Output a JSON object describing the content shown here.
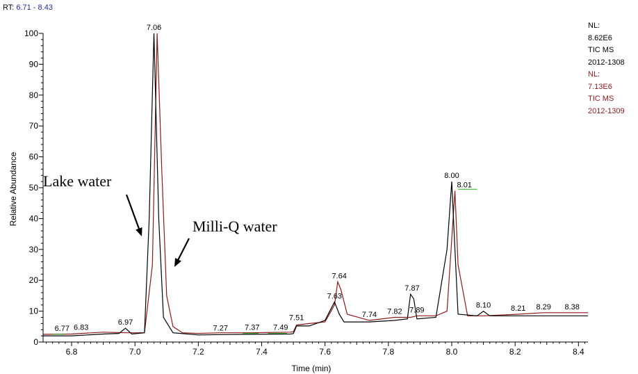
{
  "header": {
    "rt_prefix": "RT: ",
    "rt_range": "6.71 - 8.43"
  },
  "nl_info": {
    "trace1": [
      "NL:",
      "8.62E6",
      "TIC  MS",
      "2012-1308"
    ],
    "trace2": [
      "NL:",
      "7.13E6",
      "TIC  MS",
      "2012-1309"
    ]
  },
  "annotations": {
    "lake": "Lake water",
    "milliq": "Milli-Q water"
  },
  "colors": {
    "trace1": "#000000",
    "trace2": "#8b1a1a",
    "baseline_marks": "#22aa22",
    "rt_range": "#1f2f8f"
  },
  "chart_data": {
    "type": "line",
    "xlabel": "Time (min)",
    "ylabel": "Relative Abundance",
    "xlim": [
      6.71,
      8.43
    ],
    "ylim": [
      0,
      100
    ],
    "x_ticks": [
      6.8,
      7.0,
      7.2,
      7.4,
      7.6,
      7.8,
      8.0,
      8.2,
      8.4
    ],
    "y_ticks": [
      0,
      10,
      20,
      30,
      40,
      50,
      60,
      70,
      80,
      90,
      100
    ],
    "grid": false,
    "series": [
      {
        "name": "TIC MS 2012-1308",
        "color": "#000000",
        "points": [
          [
            6.71,
            2
          ],
          [
            6.8,
            2
          ],
          [
            6.9,
            2.6
          ],
          [
            6.95,
            2.8
          ],
          [
            6.97,
            4.5
          ],
          [
            6.99,
            2.6
          ],
          [
            7.03,
            3
          ],
          [
            7.045,
            40
          ],
          [
            7.06,
            100
          ],
          [
            7.075,
            40
          ],
          [
            7.09,
            8
          ],
          [
            7.12,
            3
          ],
          [
            7.2,
            2.3
          ],
          [
            7.27,
            2.4
          ],
          [
            7.37,
            2.5
          ],
          [
            7.49,
            2.6
          ],
          [
            7.5,
            2.7
          ],
          [
            7.51,
            5.2
          ],
          [
            7.55,
            5.2
          ],
          [
            7.6,
            7
          ],
          [
            7.63,
            13
          ],
          [
            7.645,
            9
          ],
          [
            7.66,
            6.5
          ],
          [
            7.74,
            6.5
          ],
          [
            7.82,
            7
          ],
          [
            7.86,
            7.5
          ],
          [
            7.87,
            15.5
          ],
          [
            7.88,
            14
          ],
          [
            7.89,
            7.5
          ],
          [
            7.95,
            8
          ],
          [
            7.985,
            30
          ],
          [
            8.0,
            52
          ],
          [
            8.01,
            30
          ],
          [
            8.02,
            9
          ],
          [
            8.08,
            8.5
          ],
          [
            8.1,
            10
          ],
          [
            8.12,
            8.5
          ],
          [
            8.21,
            8.5
          ],
          [
            8.29,
            8.5
          ],
          [
            8.43,
            8.5
          ]
        ]
      },
      {
        "name": "TIC MS 2012-1309",
        "color": "#8b1a1a",
        "points": [
          [
            6.71,
            2.5
          ],
          [
            6.8,
            2.6
          ],
          [
            6.9,
            3.2
          ],
          [
            6.97,
            3
          ],
          [
            7.03,
            3
          ],
          [
            7.055,
            25
          ],
          [
            7.07,
            100
          ],
          [
            7.085,
            55
          ],
          [
            7.1,
            15
          ],
          [
            7.12,
            5
          ],
          [
            7.15,
            3
          ],
          [
            7.2,
            2.8
          ],
          [
            7.27,
            3
          ],
          [
            7.37,
            3
          ],
          [
            7.49,
            3.2
          ],
          [
            7.5,
            3.3
          ],
          [
            7.51,
            5.5
          ],
          [
            7.55,
            6
          ],
          [
            7.6,
            6.5
          ],
          [
            7.63,
            12
          ],
          [
            7.64,
            19.5
          ],
          [
            7.65,
            17
          ],
          [
            7.67,
            9
          ],
          [
            7.74,
            7
          ],
          [
            7.82,
            8
          ],
          [
            7.87,
            8
          ],
          [
            7.89,
            8.5
          ],
          [
            7.95,
            8.5
          ],
          [
            7.985,
            10
          ],
          [
            8.01,
            49
          ],
          [
            8.02,
            25
          ],
          [
            8.05,
            8.5
          ],
          [
            8.1,
            8.5
          ],
          [
            8.21,
            9
          ],
          [
            8.29,
            9.5
          ],
          [
            8.43,
            9.5
          ]
        ]
      }
    ],
    "peak_labels": [
      {
        "label": "6.77",
        "x": 6.77,
        "y": 2.5
      },
      {
        "label": "6.83",
        "x": 6.83,
        "y": 2.8
      },
      {
        "label": "6.97",
        "x": 6.97,
        "y": 4.5
      },
      {
        "label": "7.06",
        "x": 7.06,
        "y": 100
      },
      {
        "label": "7.27",
        "x": 7.27,
        "y": 2.6
      },
      {
        "label": "7.37",
        "x": 7.37,
        "y": 2.8
      },
      {
        "label": "7.49",
        "x": 7.46,
        "y": 2.8
      },
      {
        "label": "7.51",
        "x": 7.51,
        "y": 6
      },
      {
        "label": "7.63",
        "x": 7.63,
        "y": 13
      },
      {
        "label": "7.64",
        "x": 7.645,
        "y": 19.5
      },
      {
        "label": "7.74",
        "x": 7.74,
        "y": 7
      },
      {
        "label": "7.82",
        "x": 7.82,
        "y": 8
      },
      {
        "label": "7.87",
        "x": 7.875,
        "y": 15.5
      },
      {
        "label": "7.89",
        "x": 7.89,
        "y": 8.5
      },
      {
        "label": "8.00",
        "x": 8.0,
        "y": 52
      },
      {
        "label": "8.01",
        "x": 8.04,
        "y": 49
      },
      {
        "label": "8.10",
        "x": 8.1,
        "y": 10
      },
      {
        "label": "8.21",
        "x": 8.21,
        "y": 9
      },
      {
        "label": "8.29",
        "x": 8.29,
        "y": 9.5
      },
      {
        "label": "8.38",
        "x": 8.38,
        "y": 9.5
      }
    ],
    "baseline_marks": [
      {
        "x1": 6.74,
        "x2": 6.78,
        "y": 2.5
      },
      {
        "x1": 7.34,
        "x2": 7.39,
        "y": 2.8
      },
      {
        "x1": 7.42,
        "x2": 7.48,
        "y": 2.8
      },
      {
        "x1": 8.02,
        "x2": 8.08,
        "y": 49.5
      }
    ]
  }
}
